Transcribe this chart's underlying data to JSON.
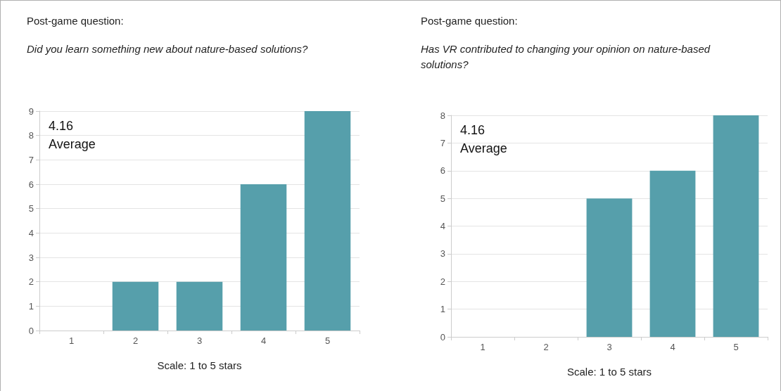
{
  "chart_data": [
    {
      "type": "bar",
      "title": "Post-game question:",
      "subtitle": "Did you learn something new about nature-based solutions?",
      "xlabel": "Scale: 1 to 5 stars",
      "categories": [
        "1",
        "2",
        "3",
        "4",
        "5"
      ],
      "values": [
        0,
        2,
        2,
        6,
        9
      ],
      "color": "#569fab",
      "ylim": [
        0,
        9
      ],
      "yticks": [
        0,
        1,
        2,
        3,
        4,
        5,
        6,
        7,
        8,
        9
      ],
      "grid": "y",
      "annotations": [
        "4.16\nAverage"
      ]
    },
    {
      "type": "bar",
      "title": "Post-game question:",
      "subtitle": "Has VR contributed to changing your opinion on nature-based solutions?",
      "xlabel": "Scale: 1 to 5 stars",
      "categories": [
        "1",
        "2",
        "3",
        "4",
        "5"
      ],
      "values": [
        0,
        0,
        5,
        6,
        8
      ],
      "color": "#569fab",
      "ylim": [
        0,
        8
      ],
      "yticks": [
        0,
        1,
        2,
        3,
        4,
        5,
        6,
        7,
        8
      ],
      "grid": "y",
      "annotations": [
        "4.16\nAverage"
      ]
    }
  ]
}
